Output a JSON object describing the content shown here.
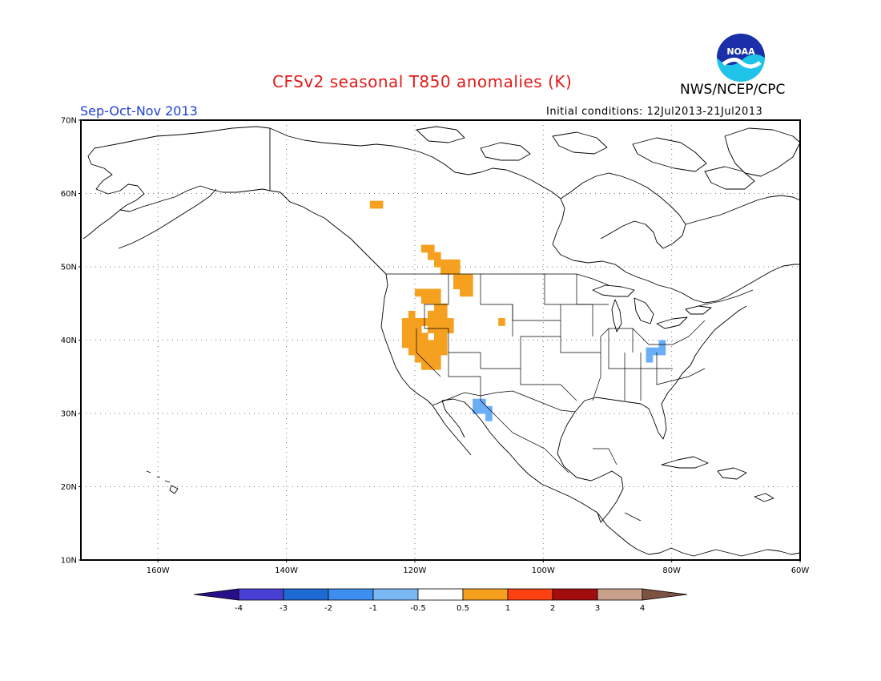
{
  "title": "CFSv2 seasonal T850 anomalies (K)",
  "agency": "NWS/NCEP/CPC",
  "season": "Sep-Oct-Nov 2013",
  "initial_conditions": "Initial conditions: 12Jul2013-21Jul2013",
  "logo_text": "NOAA",
  "map": {
    "lon_range": [
      -172,
      -60
    ],
    "lat_range": [
      10,
      70
    ],
    "lat_labels": [
      {
        "lat": 70,
        "text": "70N"
      },
      {
        "lat": 60,
        "text": "60N"
      },
      {
        "lat": 50,
        "text": "50N"
      },
      {
        "lat": 40,
        "text": "40N"
      },
      {
        "lat": 30,
        "text": "30N"
      },
      {
        "lat": 20,
        "text": "20N"
      },
      {
        "lat": 10,
        "text": "10N"
      }
    ],
    "lon_labels": [
      {
        "lon": -160,
        "text": "160W"
      },
      {
        "lon": -140,
        "text": "140W"
      },
      {
        "lon": -120,
        "text": "120W"
      },
      {
        "lon": -100,
        "text": "100W"
      },
      {
        "lon": -80,
        "text": "80W"
      },
      {
        "lon": -60,
        "text": "60W"
      }
    ],
    "grid": true,
    "anomaly_regions": [
      {
        "name": "nw-canada-positive",
        "color": "#f5a01e",
        "cells": [
          [
            -127,
            58
          ],
          [
            -126,
            58
          ]
        ]
      },
      {
        "name": "bc-alberta-positive",
        "color": "#f5a01e",
        "cells": [
          [
            -119,
            52
          ],
          [
            -118,
            52
          ],
          [
            -118,
            51
          ],
          [
            -117,
            51
          ],
          [
            -117,
            50
          ],
          [
            -116,
            50
          ],
          [
            -115,
            50
          ],
          [
            -114,
            50
          ],
          [
            -116,
            49
          ],
          [
            -115,
            49
          ],
          [
            -114,
            49
          ],
          [
            -114,
            48
          ],
          [
            -113,
            48
          ],
          [
            -112,
            48
          ],
          [
            -114,
            47
          ],
          [
            -113,
            47
          ],
          [
            -112,
            47
          ],
          [
            -113,
            46
          ],
          [
            -112,
            46
          ]
        ]
      },
      {
        "name": "wyoming-positive",
        "color": "#f5a01e",
        "cells": [
          [
            -107,
            42
          ]
        ]
      },
      {
        "name": "great-basin-positive",
        "color": "#f5a01e",
        "cells": [
          [
            -120,
            46
          ],
          [
            -119,
            46
          ],
          [
            -118,
            46
          ],
          [
            -117,
            46
          ],
          [
            -119,
            45
          ],
          [
            -118,
            45
          ],
          [
            -117,
            45
          ],
          [
            -117,
            44
          ],
          [
            -116,
            44
          ],
          [
            -121,
            43
          ],
          [
            -118,
            43
          ],
          [
            -117,
            43
          ],
          [
            -116,
            43
          ],
          [
            -122,
            42
          ],
          [
            -121,
            42
          ],
          [
            -120,
            42
          ],
          [
            -119,
            42
          ],
          [
            -118,
            42
          ],
          [
            -117,
            42
          ],
          [
            -116,
            42
          ],
          [
            -115,
            42
          ],
          [
            -122,
            41
          ],
          [
            -121,
            41
          ],
          [
            -120,
            41
          ],
          [
            -118,
            41
          ],
          [
            -117,
            41
          ],
          [
            -116,
            41
          ],
          [
            -115,
            41
          ],
          [
            -122,
            40
          ],
          [
            -121,
            40
          ],
          [
            -120,
            40
          ],
          [
            -119,
            40
          ],
          [
            -117,
            40
          ],
          [
            -116,
            40
          ],
          [
            -122,
            39
          ],
          [
            -121,
            39
          ],
          [
            -120,
            39
          ],
          [
            -119,
            39
          ],
          [
            -118,
            39
          ],
          [
            -117,
            39
          ],
          [
            -116,
            39
          ],
          [
            -121,
            38
          ],
          [
            -120,
            38
          ],
          [
            -119,
            38
          ],
          [
            -118,
            38
          ],
          [
            -117,
            38
          ],
          [
            -116,
            38
          ],
          [
            -120,
            37
          ],
          [
            -119,
            37
          ],
          [
            -118,
            37
          ],
          [
            -117,
            37
          ],
          [
            -119,
            36
          ],
          [
            -118,
            36
          ],
          [
            -117,
            36
          ]
        ]
      },
      {
        "name": "ohio-valley-negative",
        "color": "#6aaef5",
        "cells": [
          [
            -82,
            39
          ],
          [
            -82,
            38
          ],
          [
            -83,
            38
          ],
          [
            -84,
            38
          ],
          [
            -84,
            37
          ]
        ]
      },
      {
        "name": "nw-mexico-negative",
        "color": "#6aaef5",
        "cells": [
          [
            -111,
            31
          ],
          [
            -110,
            31
          ],
          [
            -111,
            30
          ],
          [
            -110,
            30
          ],
          [
            -109,
            30
          ],
          [
            -109,
            29
          ]
        ]
      }
    ]
  },
  "colorbar": {
    "colors": [
      "#270f8a",
      "#4a3fd4",
      "#1e6ad3",
      "#3c8ff0",
      "#79b8f3",
      "#ffffff",
      "#f5a01e",
      "#ff4010",
      "#a30d0d",
      "#c9a08a",
      "#7e5243"
    ],
    "labels": [
      "-4",
      "-3",
      "-2",
      "-1",
      "-0.5",
      "0.5",
      "1",
      "2",
      "3",
      "4"
    ]
  }
}
